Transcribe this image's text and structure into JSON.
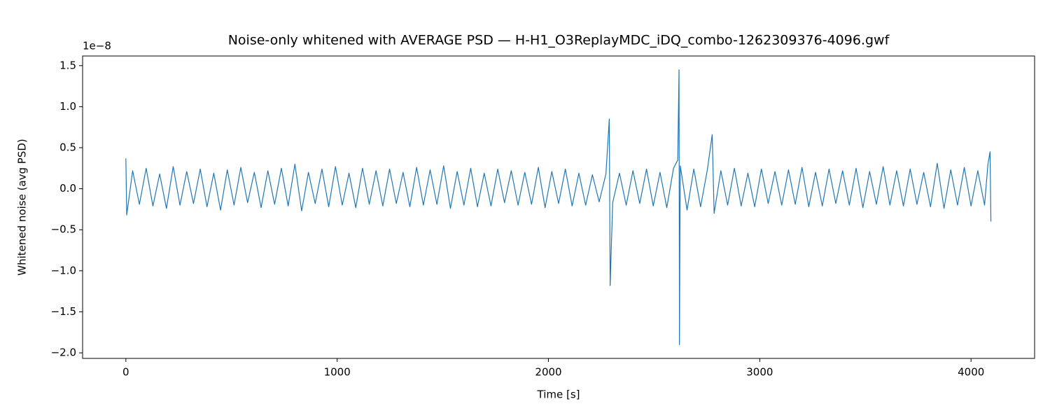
{
  "chart_data": {
    "type": "line",
    "title": "Noise-only whitened with AVERAGE PSD — H-H1_O3ReplayMDC_iDQ_combo-1262309376-4096.gwf",
    "x_label": "Time [s]",
    "y_label": "Whitened noise (avg PSD)",
    "y_offset_label": "1e−8",
    "xlim": [
      -204.8,
      4300.8
    ],
    "ylim": [
      -2.0675,
      1.6175
    ],
    "xticks": [
      0,
      1000,
      2000,
      3000,
      4000
    ],
    "yticks": [
      {
        "value": -2,
        "label": "−2.0"
      },
      {
        "value": -1.5,
        "label": "−1.5"
      },
      {
        "value": -1,
        "label": "−1.0"
      },
      {
        "value": -0.5,
        "label": "−0.5"
      },
      {
        "value": 0,
        "label": "0.0"
      },
      0.5,
      {
        "value": 1,
        "label": "1.0"
      },
      1.5
    ],
    "x": [
      0,
      4,
      32,
      64,
      96,
      128,
      160,
      192,
      224,
      256,
      288,
      320,
      352,
      384,
      416,
      448,
      480,
      512,
      544,
      576,
      608,
      640,
      672,
      704,
      736,
      768,
      800,
      832,
      864,
      896,
      928,
      960,
      992,
      1024,
      1056,
      1088,
      1120,
      1152,
      1184,
      1216,
      1248,
      1280,
      1312,
      1344,
      1376,
      1408,
      1440,
      1472,
      1504,
      1536,
      1568,
      1600,
      1632,
      1664,
      1696,
      1728,
      1760,
      1792,
      1824,
      1856,
      1888,
      1920,
      1952,
      1984,
      2016,
      2048,
      2080,
      2112,
      2144,
      2176,
      2208,
      2240,
      2272,
      2288,
      2292,
      2304,
      2336,
      2368,
      2400,
      2432,
      2464,
      2496,
      2528,
      2560,
      2592,
      2612,
      2618,
      2620,
      2622,
      2624,
      2656,
      2688,
      2720,
      2752,
      2775,
      2784,
      2816,
      2848,
      2880,
      2912,
      2944,
      2976,
      3008,
      3040,
      3072,
      3104,
      3136,
      3168,
      3200,
      3232,
      3264,
      3296,
      3328,
      3360,
      3392,
      3424,
      3456,
      3488,
      3520,
      3552,
      3584,
      3616,
      3648,
      3680,
      3712,
      3744,
      3776,
      3808,
      3840,
      3872,
      3904,
      3936,
      3968,
      4000,
      4032,
      4064,
      4080,
      4090,
      4094
    ],
    "series": [
      {
        "color": "#1f77b4",
        "values": [
          0.37,
          -0.32,
          0.22,
          -0.19,
          0.25,
          -0.21,
          0.18,
          -0.24,
          0.27,
          -0.2,
          0.21,
          -0.18,
          0.24,
          -0.22,
          0.19,
          -0.26,
          0.23,
          -0.2,
          0.26,
          -0.17,
          0.2,
          -0.23,
          0.22,
          -0.19,
          0.25,
          -0.21,
          0.3,
          -0.27,
          0.2,
          -0.18,
          0.24,
          -0.22,
          0.27,
          -0.2,
          0.19,
          -0.23,
          0.25,
          -0.19,
          0.22,
          -0.21,
          0.24,
          -0.18,
          0.2,
          -0.22,
          0.26,
          -0.2,
          0.23,
          -0.19,
          0.28,
          -0.24,
          0.21,
          -0.2,
          0.25,
          -0.22,
          0.19,
          -0.21,
          0.24,
          -0.17,
          0.22,
          -0.2,
          0.2,
          -0.19,
          0.26,
          -0.23,
          0.21,
          -0.18,
          0.24,
          -0.21,
          0.19,
          -0.2,
          0.17,
          -0.16,
          0.18,
          0.85,
          -1.18,
          -0.17,
          0.19,
          -0.2,
          0.22,
          -0.18,
          0.24,
          -0.21,
          0.2,
          -0.23,
          0.25,
          0.35,
          1.45,
          -1.9,
          -0.6,
          0.28,
          -0.26,
          0.24,
          -0.22,
          0.23,
          0.66,
          -0.3,
          0.22,
          -0.2,
          0.25,
          -0.21,
          0.19,
          -0.22,
          0.24,
          -0.18,
          0.21,
          -0.2,
          0.23,
          -0.19,
          0.26,
          -0.22,
          0.2,
          -0.21,
          0.24,
          -0.18,
          0.22,
          -0.2,
          0.25,
          -0.23,
          0.21,
          -0.19,
          0.27,
          -0.2,
          0.22,
          -0.21,
          0.24,
          -0.19,
          0.2,
          -0.22,
          0.31,
          -0.24,
          0.23,
          -0.2,
          0.26,
          -0.21,
          0.22,
          -0.2,
          0.3,
          0.45,
          -0.4
        ]
      }
    ]
  }
}
